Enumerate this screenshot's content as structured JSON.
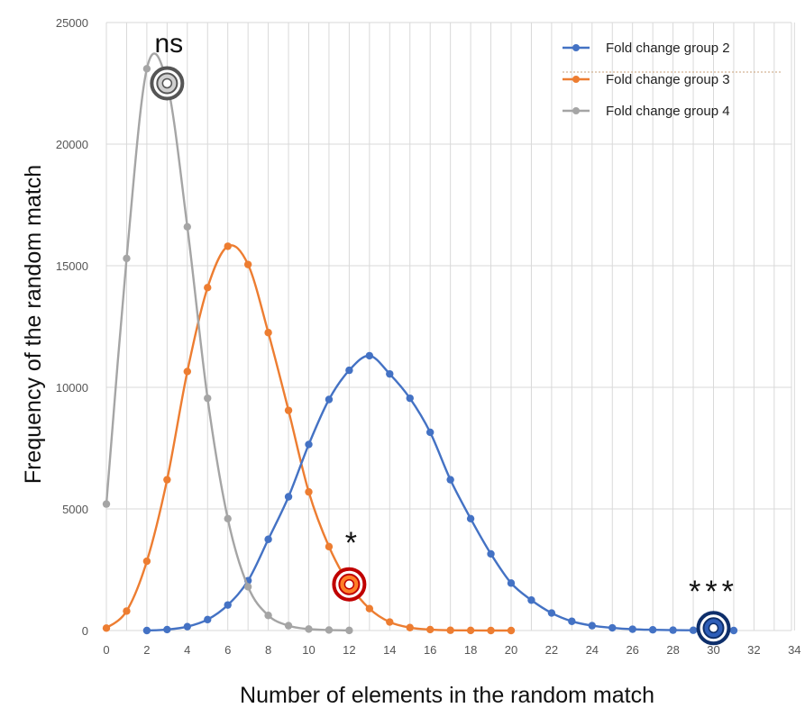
{
  "chart_data": {
    "type": "line",
    "xlabel": "Number of elements in the random match",
    "ylabel": "Frequency of the random match",
    "xlim": [
      0,
      35
    ],
    "ylim": [
      0,
      25000
    ],
    "x_ticks": [
      0,
      2,
      4,
      6,
      8,
      10,
      12,
      14,
      16,
      18,
      20,
      22,
      24,
      26,
      28,
      30,
      32,
      34
    ],
    "y_ticks": [
      0,
      5000,
      10000,
      15000,
      20000,
      25000
    ],
    "grid": true,
    "legend_position": "top-right",
    "series": [
      {
        "name": "Fold change group 2",
        "color": "#4472C4",
        "x": [
          2,
          3,
          4,
          5,
          6,
          7,
          8,
          9,
          10,
          11,
          12,
          13,
          14,
          15,
          16,
          17,
          18,
          19,
          20,
          21,
          22,
          23,
          24,
          25,
          26,
          27,
          28,
          29,
          30,
          31
        ],
        "values": [
          0,
          40,
          160,
          450,
          1050,
          2050,
          3750,
          5500,
          7650,
          9500,
          10700,
          11300,
          10550,
          9550,
          8150,
          6200,
          4600,
          3150,
          1950,
          1250,
          720,
          380,
          200,
          110,
          55,
          30,
          15,
          10,
          5,
          0
        ]
      },
      {
        "name": "Fold change group 3",
        "color": "#ED7D31",
        "x": [
          0,
          1,
          2,
          3,
          4,
          5,
          6,
          7,
          8,
          9,
          10,
          11,
          12,
          13,
          14,
          15,
          16,
          17,
          18,
          19,
          20
        ],
        "values": [
          100,
          800,
          2850,
          6200,
          10650,
          14100,
          15800,
          15050,
          12250,
          9050,
          5700,
          3450,
          1900,
          900,
          350,
          120,
          40,
          10,
          5,
          0,
          0
        ]
      },
      {
        "name": "Fold change group 4",
        "color": "#A5A5A5",
        "x": [
          0,
          1,
          2,
          3,
          4,
          5,
          6,
          7,
          8,
          9,
          10,
          11,
          12
        ],
        "values": [
          5200,
          15300,
          23100,
          22500,
          16600,
          9550,
          4600,
          1800,
          620,
          200,
          60,
          20,
          5
        ]
      }
    ],
    "annotations": [
      {
        "label": "ns",
        "x": 3,
        "y": 22500,
        "color": "#555555",
        "fill": "#D0D0D0"
      },
      {
        "label": "*",
        "x": 12,
        "y": 1900,
        "color": "#C00000",
        "fill": "#FF7F27"
      },
      {
        "label": "***",
        "x": 30,
        "y": 100,
        "color": "#0E2F6B",
        "fill": "#2E5EB8"
      }
    ]
  }
}
